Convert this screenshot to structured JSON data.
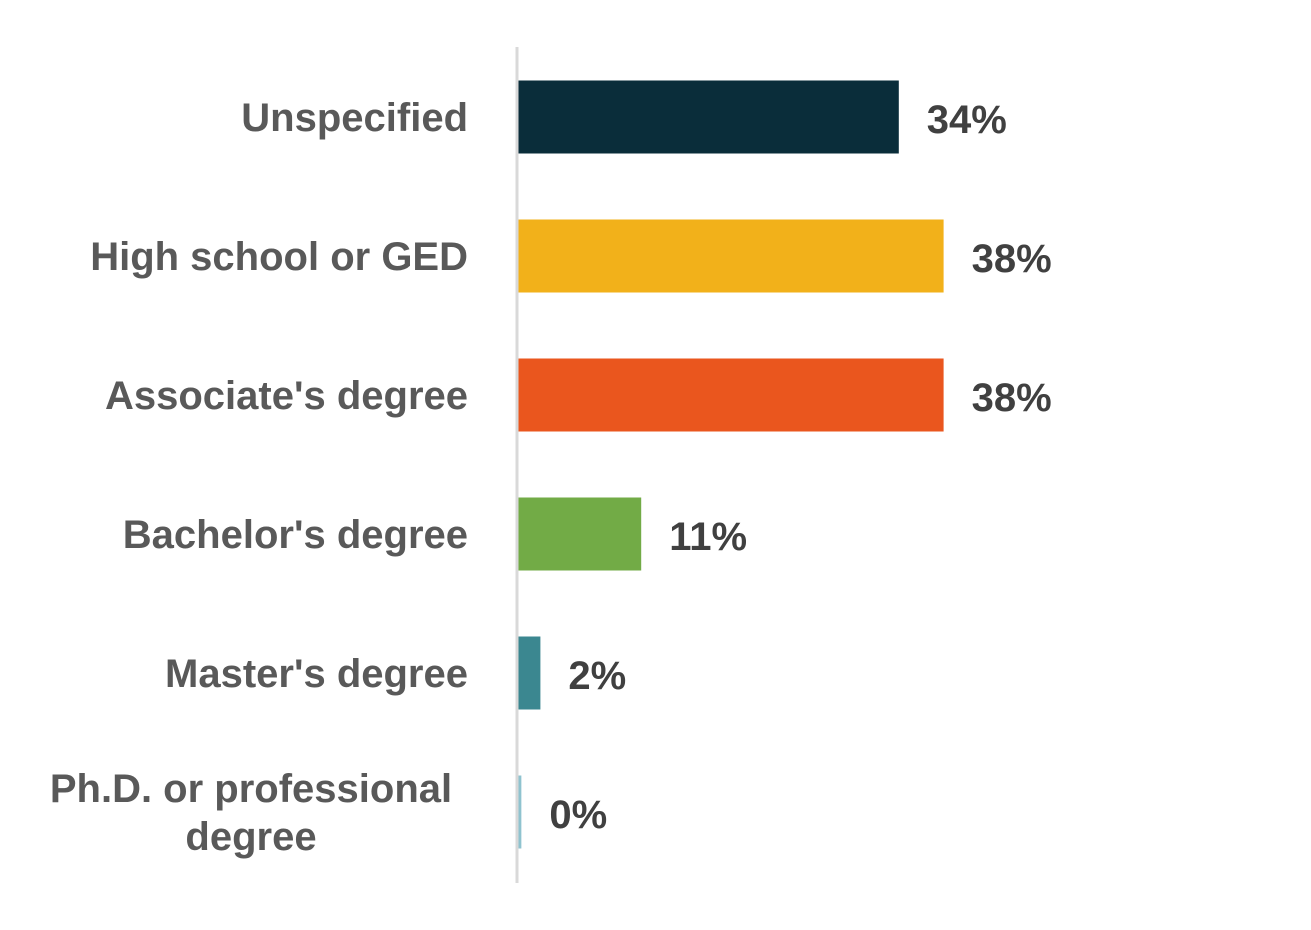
{
  "chart_data": {
    "type": "bar",
    "orientation": "horizontal",
    "categories": [
      "Unspecified",
      "High school or GED",
      "Associate's degree",
      "Bachelor's degree",
      "Master's degree",
      "Ph.D. or professional degree"
    ],
    "category_lines": [
      [
        "Unspecified"
      ],
      [
        "High school or GED"
      ],
      [
        "Associate's degree"
      ],
      [
        "Bachelor's degree"
      ],
      [
        "Master's degree"
      ],
      [
        "Ph.D. or professional",
        "degree"
      ]
    ],
    "values": [
      34,
      38,
      38,
      11,
      2,
      0.3
    ],
    "value_labels": [
      "34%",
      "38%",
      "38%",
      "11%",
      "2%",
      "0%"
    ],
    "colors": [
      "#0a2d3a",
      "#f2b11a",
      "#ea561e",
      "#72ab46",
      "#3b8790",
      "#8fc3cf"
    ],
    "xlim": [
      0,
      41
    ],
    "title": "",
    "xlabel": "",
    "ylabel": "",
    "grid": false,
    "legend": "none"
  }
}
